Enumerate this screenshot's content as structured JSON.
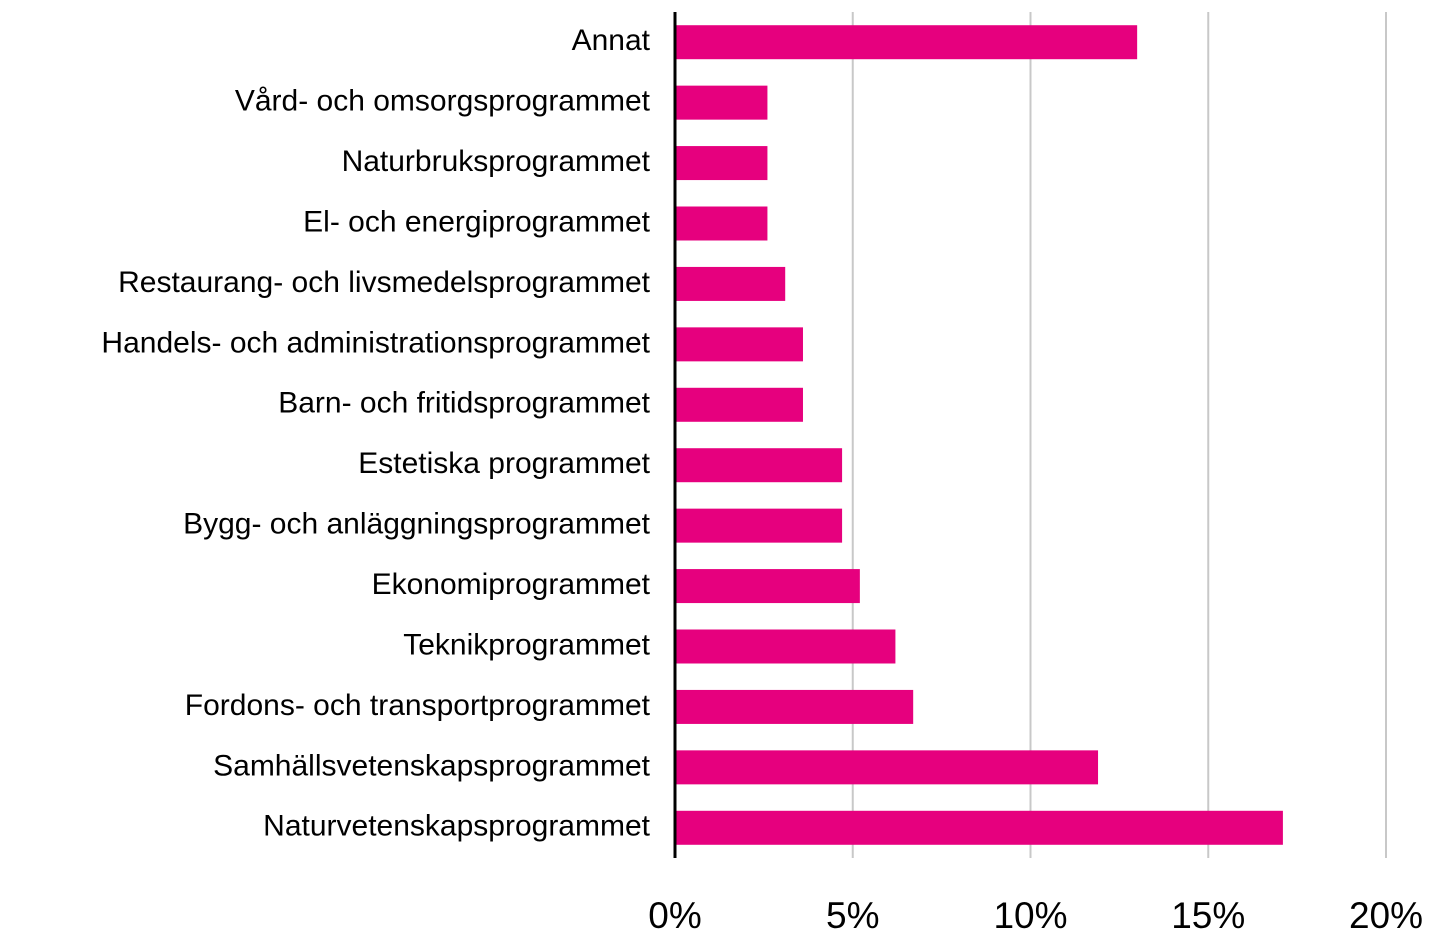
{
  "chart_data": {
    "type": "barh",
    "categories": [
      "Annat",
      "Vård- och omsorgsprogrammet",
      "Naturbruksprogrammet",
      "El- och energiprogrammet",
      "Restaurang- och livsmedelsprogrammet",
      "Handels- och administrationsprogrammet",
      "Barn- och fritidsprogrammet",
      "Estetiska programmet",
      "Bygg- och anläggningsprogrammet",
      "Ekonomiprogrammet",
      "Teknikprogrammet",
      "Fordons- och transportprogrammet",
      "Samhällsvetenskapsprogrammet",
      "Naturvetenskapsprogrammet"
    ],
    "values": [
      13,
      2.6,
      2.6,
      2.6,
      3.1,
      3.6,
      3.6,
      4.7,
      4.7,
      5.2,
      6.2,
      6.7,
      11.9,
      17.1
    ],
    "color": "#e6007e",
    "xlim": [
      0,
      20
    ],
    "xticks": [
      {
        "value": 0,
        "label": "0%"
      },
      {
        "value": 5,
        "label": "5%"
      },
      {
        "value": 10,
        "label": "10%"
      },
      {
        "value": 15,
        "label": "15%"
      },
      {
        "value": 20,
        "label": "20%"
      }
    ],
    "grid": true
  }
}
